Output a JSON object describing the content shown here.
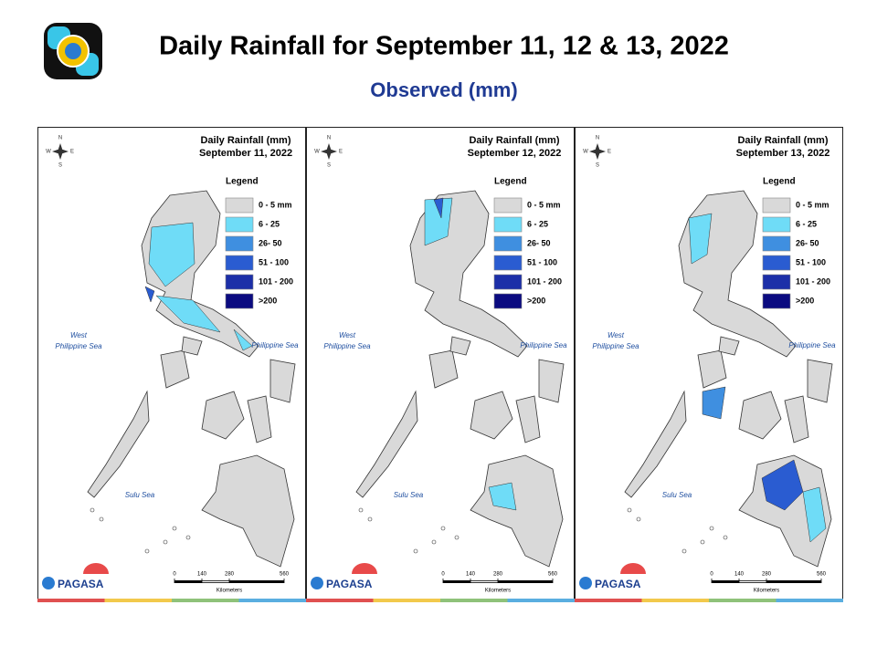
{
  "header": {
    "title": "Daily Rainfall for September 11, 12 & 13, 2022",
    "subtitle": "Observed (mm)"
  },
  "panels": [
    {
      "title": "Daily Rainfall (mm)",
      "date": "September 11, 2022"
    },
    {
      "title": "Daily Rainfall (mm)",
      "date": "September 12, 2022"
    },
    {
      "title": "Daily Rainfall (mm)",
      "date": "September 13, 2022"
    }
  ],
  "legend": {
    "title": "Legend",
    "items": [
      {
        "label": "0 - 5 mm",
        "color": "#d9d9d9"
      },
      {
        "label": "6 - 25",
        "color": "#6fdcf7"
      },
      {
        "label": "26- 50",
        "color": "#3f8fe0"
      },
      {
        "label": "51 - 100",
        "color": "#2a5cd1"
      },
      {
        "label": "101 - 200",
        "color": "#1c2fa8"
      },
      {
        "label": ">200",
        "color": "#0b0b80"
      }
    ]
  },
  "seas": {
    "west": [
      "West",
      "Philippine Sea"
    ],
    "east": "Philippine Sea",
    "sulu": "Sulu Sea"
  },
  "compass": {
    "n": "N",
    "e": "E",
    "w": "W",
    "s": "S"
  },
  "scale": {
    "ticks": [
      0,
      140,
      280,
      560
    ],
    "unit": "Kilometers"
  },
  "logo": {
    "name": "PAGASA"
  }
}
